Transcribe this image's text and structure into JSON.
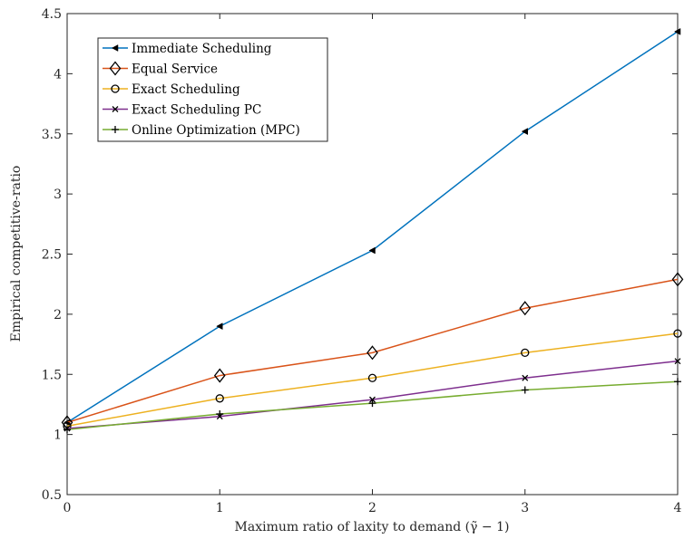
{
  "chart_data": {
    "type": "line",
    "xlabel": "Maximum ratio of laxity to demand (γ̃ − 1)",
    "ylabel": "Empirical competitive-ratio",
    "xlim": [
      0,
      4
    ],
    "ylim": [
      0.5,
      4.5
    ],
    "x_ticks": [
      "0",
      "1",
      "2",
      "3",
      "4"
    ],
    "y_ticks": [
      "0.5",
      "1",
      "1.5",
      "2",
      "2.5",
      "3",
      "3.5",
      "4",
      "4.5"
    ],
    "grid": false,
    "legend_position": "top-left",
    "x": [
      0,
      1,
      2,
      3,
      4
    ],
    "series": [
      {
        "name": "Immediate Scheduling",
        "color": "#0072BD",
        "marker": "triangle-left",
        "values": [
          1.1,
          1.9,
          2.53,
          3.52,
          4.35
        ]
      },
      {
        "name": "Equal Service",
        "color": "#D95319",
        "marker": "diamond",
        "values": [
          1.1,
          1.49,
          1.68,
          2.05,
          2.29
        ]
      },
      {
        "name": "Exact Scheduling",
        "color": "#EDB120",
        "marker": "circle",
        "values": [
          1.07,
          1.3,
          1.47,
          1.68,
          1.84
        ]
      },
      {
        "name": "Exact Scheduling PC",
        "color": "#7E2F8E",
        "marker": "x",
        "values": [
          1.05,
          1.15,
          1.29,
          1.47,
          1.61
        ]
      },
      {
        "name": "Online Optimization (MPC)",
        "color": "#77AC30",
        "marker": "plus",
        "values": [
          1.04,
          1.17,
          1.26,
          1.37,
          1.44
        ]
      }
    ]
  }
}
